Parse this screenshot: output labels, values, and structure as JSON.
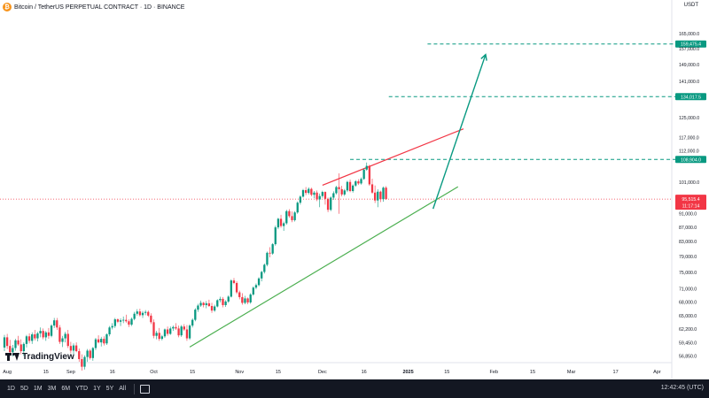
{
  "header": {
    "coin_icon": "bitcoin-icon",
    "title": "Bitcoin / TetherUS PERPETUAL CONTRACT · 1D · BINANCE",
    "currency": "USDT"
  },
  "timeframes": [
    "1D",
    "5D",
    "1M",
    "3M",
    "6M",
    "YTD",
    "1Y",
    "5Y",
    "All"
  ],
  "clock": "12:42:45 (UTC)",
  "branding": "TradingView",
  "colors": {
    "up": "#089981",
    "down": "#f23645",
    "support": "#4caf50",
    "resistance": "#f23645",
    "target": "#089981",
    "arrow": "#089981",
    "price_label": "#f23645"
  },
  "chart_data": {
    "type": "candlestick",
    "title": "",
    "y_axis_ticks": [
      "165,000.0",
      "157,000.0",
      "149,000.0",
      "141,000.0",
      "134,017.5",
      "125,000.0",
      "117,000.0",
      "112,000.0",
      "108,904.0",
      "101,000.0",
      "95,515.4",
      "91,000.0",
      "87,000.0",
      "83,000.0",
      "79,000.0",
      "75,000.0",
      "71,000.0",
      "68,000.0",
      "65,000.0",
      "62,200.0",
      "59,450.0",
      "56,850.0"
    ],
    "x_axis_ticks": [
      {
        "label": "Aug",
        "day": -23
      },
      {
        "label": "15",
        "day": -9
      },
      {
        "label": "Sep",
        "day": 0
      },
      {
        "label": "16",
        "day": 15
      },
      {
        "label": "Oct",
        "day": 30
      },
      {
        "label": "15",
        "day": 44
      },
      {
        "label": "Nov",
        "day": 61
      },
      {
        "label": "15",
        "day": 75
      },
      {
        "label": "Dec",
        "day": 91
      },
      {
        "label": "16",
        "day": 106
      },
      {
        "label": "2025",
        "day": 122
      },
      {
        "label": "15",
        "day": 136
      },
      {
        "label": "Feb",
        "day": 153
      },
      {
        "label": "15",
        "day": 167
      },
      {
        "label": "Mar",
        "day": 181
      },
      {
        "label": "17",
        "day": 197
      },
      {
        "label": "Apr",
        "day": 212
      }
    ],
    "levels": [
      {
        "label": "159,475.4",
        "value": 159475.4,
        "start_day": 129
      },
      {
        "label": "134,017.5",
        "value": 134017.5,
        "start_day": 115
      },
      {
        "label": "108,904.0",
        "value": 108904.0,
        "start_day": 101
      }
    ],
    "last_price": {
      "label": "95,515.4",
      "countdown": "11:17:14",
      "value": 95515.4
    },
    "trendlines": [
      {
        "name": "resistance",
        "points": [
          [
            91,
            100000
          ],
          [
            142,
            120500
          ]
        ]
      },
      {
        "name": "support",
        "points": [
          [
            43,
            58600
          ],
          [
            140,
            99500
          ]
        ]
      }
    ],
    "projection_arrow": {
      "from": [
        131,
        92500
      ],
      "to": [
        150,
        154000
      ]
    },
    "candles": [
      [
        -24,
        58500,
        61000,
        57800,
        60500
      ],
      [
        -23,
        60500,
        61200,
        58200,
        58800
      ],
      [
        -22,
        58800,
        60000,
        57000,
        57600
      ],
      [
        -21,
        57600,
        59000,
        56800,
        58400
      ],
      [
        -20,
        58400,
        60200,
        57900,
        59900
      ],
      [
        -19,
        59900,
        60800,
        58800,
        59100
      ],
      [
        -18,
        59100,
        60100,
        57200,
        57800
      ],
      [
        -17,
        57800,
        59500,
        56900,
        59200
      ],
      [
        -16,
        59200,
        61000,
        58500,
        60700
      ],
      [
        -15,
        60700,
        61300,
        59300,
        59800
      ],
      [
        -14,
        59800,
        61500,
        59200,
        61100
      ],
      [
        -13,
        61100,
        62000,
        59900,
        60300
      ],
      [
        -12,
        60300,
        61600,
        59700,
        61300
      ],
      [
        -11,
        61300,
        62500,
        60500,
        61800
      ],
      [
        -10,
        61800,
        62300,
        60100,
        60500
      ],
      [
        -9,
        60500,
        61800,
        59800,
        61500
      ],
      [
        -8,
        61500,
        62400,
        60200,
        60800
      ],
      [
        -7,
        60800,
        63200,
        60500,
        62900
      ],
      [
        -6,
        62900,
        64500,
        62400,
        64000
      ],
      [
        -5,
        64000,
        64500,
        62000,
        62500
      ],
      [
        -4,
        62500,
        63000,
        59200,
        59600
      ],
      [
        -3,
        59600,
        60800,
        58600,
        60300
      ],
      [
        -2,
        60300,
        61600,
        59500,
        61200
      ],
      [
        -1,
        61200,
        62000,
        58400,
        58800
      ],
      [
        0,
        58800,
        59600,
        57400,
        57900
      ],
      [
        1,
        57900,
        59300,
        57300,
        58900
      ],
      [
        2,
        58900,
        59500,
        57600,
        57800
      ],
      [
        3,
        57800,
        58300,
        55800,
        56300
      ],
      [
        4,
        56300,
        57200,
        54200,
        54900
      ],
      [
        5,
        54900,
        57000,
        54400,
        56700
      ],
      [
        6,
        56700,
        58200,
        55800,
        57900
      ],
      [
        7,
        57900,
        58200,
        56200,
        56500
      ],
      [
        8,
        56500,
        58600,
        56000,
        58400
      ],
      [
        9,
        58400,
        60400,
        58000,
        60100
      ],
      [
        10,
        60100,
        60900,
        59300,
        59500
      ],
      [
        11,
        59500,
        60600,
        58700,
        60200
      ],
      [
        12,
        60200,
        60700,
        58900,
        59300
      ],
      [
        13,
        59300,
        61300,
        59000,
        61100
      ],
      [
        14,
        61100,
        62800,
        60700,
        62500
      ],
      [
        15,
        62500,
        63400,
        62100,
        62800
      ],
      [
        16,
        62800,
        64500,
        62400,
        64200
      ],
      [
        17,
        64200,
        64400,
        63400,
        63700
      ],
      [
        18,
        63700,
        64400,
        62800,
        64000
      ],
      [
        19,
        64000,
        64800,
        63400,
        64100
      ],
      [
        20,
        64100,
        65200,
        63500,
        63800
      ],
      [
        21,
        63800,
        64200,
        62600,
        63100
      ],
      [
        22,
        63100,
        64600,
        62800,
        64300
      ],
      [
        23,
        64300,
        65800,
        64000,
        65400
      ],
      [
        24,
        65400,
        66400,
        65000,
        65900
      ],
      [
        25,
        65900,
        66500,
        64800,
        65100
      ],
      [
        26,
        65100,
        66000,
        64500,
        65600
      ],
      [
        27,
        65600,
        66200,
        65100,
        65800
      ],
      [
        28,
        65800,
        66100,
        64700,
        65000
      ],
      [
        29,
        65000,
        65500,
        63200,
        63600
      ],
      [
        30,
        63600,
        64200,
        60300,
        60800
      ],
      [
        31,
        60800,
        61800,
        60100,
        61400
      ],
      [
        32,
        61400,
        62400,
        59800,
        60200
      ],
      [
        33,
        60200,
        61000,
        59900,
        60700
      ],
      [
        34,
        60700,
        62300,
        60400,
        62100
      ],
      [
        35,
        62100,
        62700,
        60800,
        61200
      ],
      [
        36,
        61200,
        62700,
        61000,
        62300
      ],
      [
        37,
        62300,
        62900,
        61800,
        62600
      ],
      [
        38,
        62600,
        63400,
        62000,
        62300
      ],
      [
        39,
        62300,
        62900,
        60500,
        60900
      ],
      [
        40,
        60900,
        63000,
        60600,
        62700
      ],
      [
        41,
        62700,
        63200,
        61800,
        62100
      ],
      [
        42,
        62100,
        63000,
        59800,
        60300
      ],
      [
        43,
        60300,
        63200,
        60000,
        62900
      ],
      [
        44,
        62900,
        64400,
        62500,
        64100
      ],
      [
        45,
        64100,
        66600,
        63800,
        66300
      ],
      [
        46,
        66300,
        67600,
        65800,
        67200
      ],
      [
        47,
        67200,
        68300,
        66900,
        67800
      ],
      [
        48,
        67800,
        68000,
        66800,
        67300
      ],
      [
        49,
        67300,
        68200,
        66600,
        67700
      ],
      [
        50,
        67700,
        68500,
        66900,
        67100
      ],
      [
        51,
        67100,
        67800,
        65600,
        66100
      ],
      [
        52,
        66100,
        67400,
        65800,
        67000
      ],
      [
        53,
        67000,
        68600,
        66800,
        68400
      ],
      [
        54,
        68400,
        69200,
        67900,
        68700
      ],
      [
        55,
        68700,
        69100,
        66800,
        67300
      ],
      [
        56,
        67300,
        68400,
        66900,
        68100
      ],
      [
        57,
        68100,
        69500,
        67800,
        69200
      ],
      [
        58,
        69200,
        73300,
        69000,
        73000
      ],
      [
        59,
        73000,
        73600,
        72100,
        72400
      ],
      [
        60,
        72400,
        72800,
        69800,
        70200
      ],
      [
        61,
        70200,
        70600,
        68600,
        69100
      ],
      [
        62,
        69100,
        70000,
        67400,
        67800
      ],
      [
        63,
        67800,
        69400,
        67500,
        68800
      ],
      [
        64,
        68800,
        69000,
        67500,
        67900
      ],
      [
        65,
        67900,
        70000,
        67600,
        69700
      ],
      [
        66,
        69700,
        71600,
        69400,
        71300
      ],
      [
        67,
        71300,
        72300,
        70900,
        71900
      ],
      [
        68,
        71900,
        73800,
        71600,
        73500
      ],
      [
        69,
        73500,
        75400,
        72800,
        75100
      ],
      [
        70,
        75100,
        77200,
        74700,
        76900
      ],
      [
        71,
        76900,
        80300,
        76500,
        80000
      ],
      [
        72,
        80000,
        81500,
        78800,
        79800
      ],
      [
        73,
        79800,
        82600,
        79500,
        82300
      ],
      [
        74,
        82300,
        87500,
        81900,
        87000
      ],
      [
        75,
        87000,
        89800,
        86500,
        89500
      ],
      [
        76,
        89500,
        90700,
        86900,
        87400
      ],
      [
        77,
        87400,
        88700,
        86000,
        88200
      ],
      [
        78,
        88200,
        92200,
        87800,
        91800
      ],
      [
        79,
        91800,
        92400,
        89800,
        90300
      ],
      [
        80,
        90300,
        91700,
        88500,
        89100
      ],
      [
        81,
        89100,
        91800,
        88700,
        91400
      ],
      [
        82,
        91400,
        94800,
        91000,
        94400
      ],
      [
        83,
        94400,
        96700,
        93800,
        96300
      ],
      [
        84,
        96300,
        98800,
        96000,
        98400
      ],
      [
        85,
        98400,
        99400,
        96800,
        97500
      ],
      [
        86,
        97500,
        99300,
        97000,
        98800
      ],
      [
        87,
        98800,
        99200,
        96400,
        96900
      ],
      [
        88,
        96900,
        98100,
        95800,
        97600
      ],
      [
        89,
        97600,
        98300,
        94900,
        95400
      ],
      [
        90,
        95400,
        97300,
        93000,
        96500
      ],
      [
        91,
        96500,
        98200,
        95900,
        97800
      ],
      [
        92,
        97800,
        98000,
        93800,
        95600
      ],
      [
        93,
        95600,
        96000,
        91500,
        92200
      ],
      [
        94,
        92200,
        96400,
        91800,
        96000
      ],
      [
        95,
        96000,
        98000,
        95300,
        97400
      ],
      [
        96,
        97400,
        99800,
        97000,
        99400
      ],
      [
        97,
        99400,
        104000,
        91000,
        98700
      ],
      [
        98,
        98700,
        99800,
        96400,
        97000
      ],
      [
        99,
        97000,
        98800,
        96500,
        98300
      ],
      [
        100,
        98300,
        101500,
        97800,
        101100
      ],
      [
        101,
        101100,
        101900,
        97700,
        98100
      ],
      [
        102,
        98100,
        100300,
        97600,
        99900
      ],
      [
        103,
        99900,
        101700,
        99500,
        101300
      ],
      [
        104,
        101300,
        102000,
        100100,
        100600
      ],
      [
        105,
        100600,
        102600,
        100200,
        102100
      ],
      [
        106,
        102100,
        105700,
        101800,
        105300
      ],
      [
        107,
        105300,
        107800,
        104900,
        106600
      ],
      [
        108,
        106600,
        107000,
        99800,
        100300
      ],
      [
        109,
        100300,
        102200,
        97200,
        97600
      ],
      [
        110,
        97600,
        99900,
        94300,
        95100
      ],
      [
        111,
        95100,
        98700,
        93000,
        97900
      ],
      [
        112,
        97900,
        98200,
        94600,
        95500
      ],
      [
        113,
        95500,
        99600,
        94700,
        99200
      ],
      [
        114,
        99200,
        99700,
        95300,
        95515
      ]
    ]
  }
}
